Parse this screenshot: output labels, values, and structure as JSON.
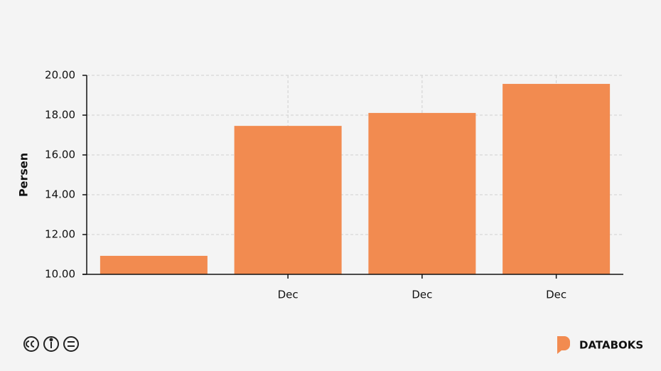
{
  "chart_data": {
    "type": "bar",
    "y_label": "Persen",
    "categories": [
      null,
      "Dec",
      "Dec",
      "Dec"
    ],
    "values": [
      10.93,
      17.46,
      18.11,
      19.57
    ],
    "color": "#f28b50",
    "ylim": [
      10,
      20
    ],
    "yticks": [
      {
        "value": 10,
        "label": "10.00"
      },
      {
        "value": 12,
        "label": "12.00"
      },
      {
        "value": 14,
        "label": "14.00"
      },
      {
        "value": 16,
        "label": "16.00"
      },
      {
        "value": 18,
        "label": "18.00"
      },
      {
        "value": 20,
        "label": "20.00"
      }
    ],
    "grid": true
  },
  "footer": {
    "brand": "DATABOKS"
  }
}
